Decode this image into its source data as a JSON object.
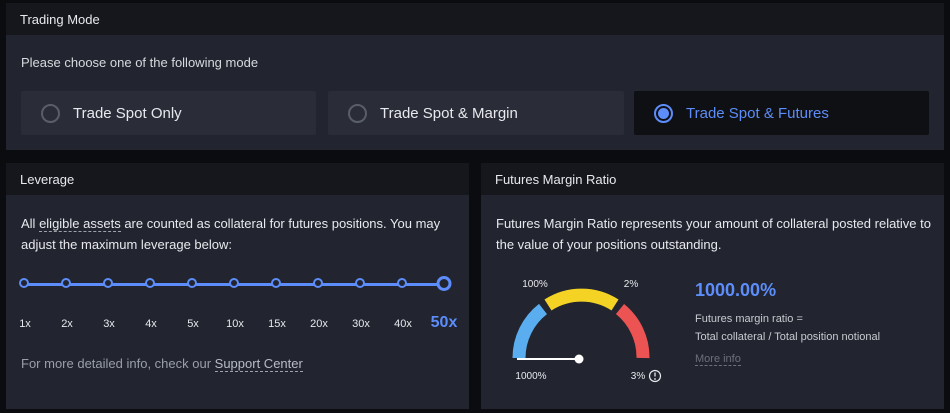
{
  "trading_mode": {
    "title": "Trading Mode",
    "subtitle": "Please choose one of the following mode",
    "options": [
      {
        "label": "Trade Spot Only",
        "selected": false
      },
      {
        "label": "Trade Spot & Margin",
        "selected": false
      },
      {
        "label": "Trade Spot & Futures",
        "selected": true
      }
    ]
  },
  "leverage": {
    "title": "Leverage",
    "desc_prefix": "All ",
    "desc_link": "eligible assets",
    "desc_suffix": " are counted as collateral for futures positions. You may adjust the maximum leverage below:",
    "ticks": [
      "1x",
      "2x",
      "3x",
      "4x",
      "5x",
      "10x",
      "15x",
      "20x",
      "30x",
      "40x",
      "50x"
    ],
    "selected": "50x",
    "footer_prefix": "For more detailed info, check our ",
    "footer_link": "Support Center"
  },
  "margin_ratio": {
    "title": "Futures Margin Ratio",
    "desc": "Futures Margin Ratio represents your amount of collateral posted relative to the value of your positions outstanding.",
    "gauge_labels": {
      "top_left": "100%",
      "top_right": "2%",
      "bottom_left": "1000%",
      "bottom_right": "3%"
    },
    "value": "1000.00%",
    "formula_line1": "Futures margin ratio =",
    "formula_line2": "Total collateral / Total position notional",
    "more_info": "More info",
    "colors": {
      "safe": "#5aaef0",
      "warning": "#f5d324",
      "danger": "#ec5353"
    }
  }
}
